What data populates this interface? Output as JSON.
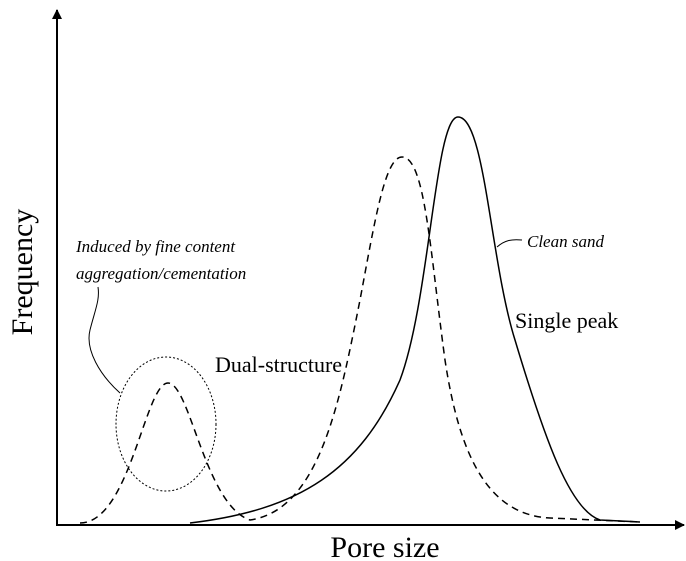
{
  "axes": {
    "y_label": "Frequency",
    "x_label": "Pore size"
  },
  "annotations": {
    "induced_line1": "Induced by fine content",
    "induced_line2": "aggregation/cementation",
    "clean_sand": "Clean sand",
    "single_peak": "Single peak",
    "dual_structure": "Dual-structure"
  }
}
